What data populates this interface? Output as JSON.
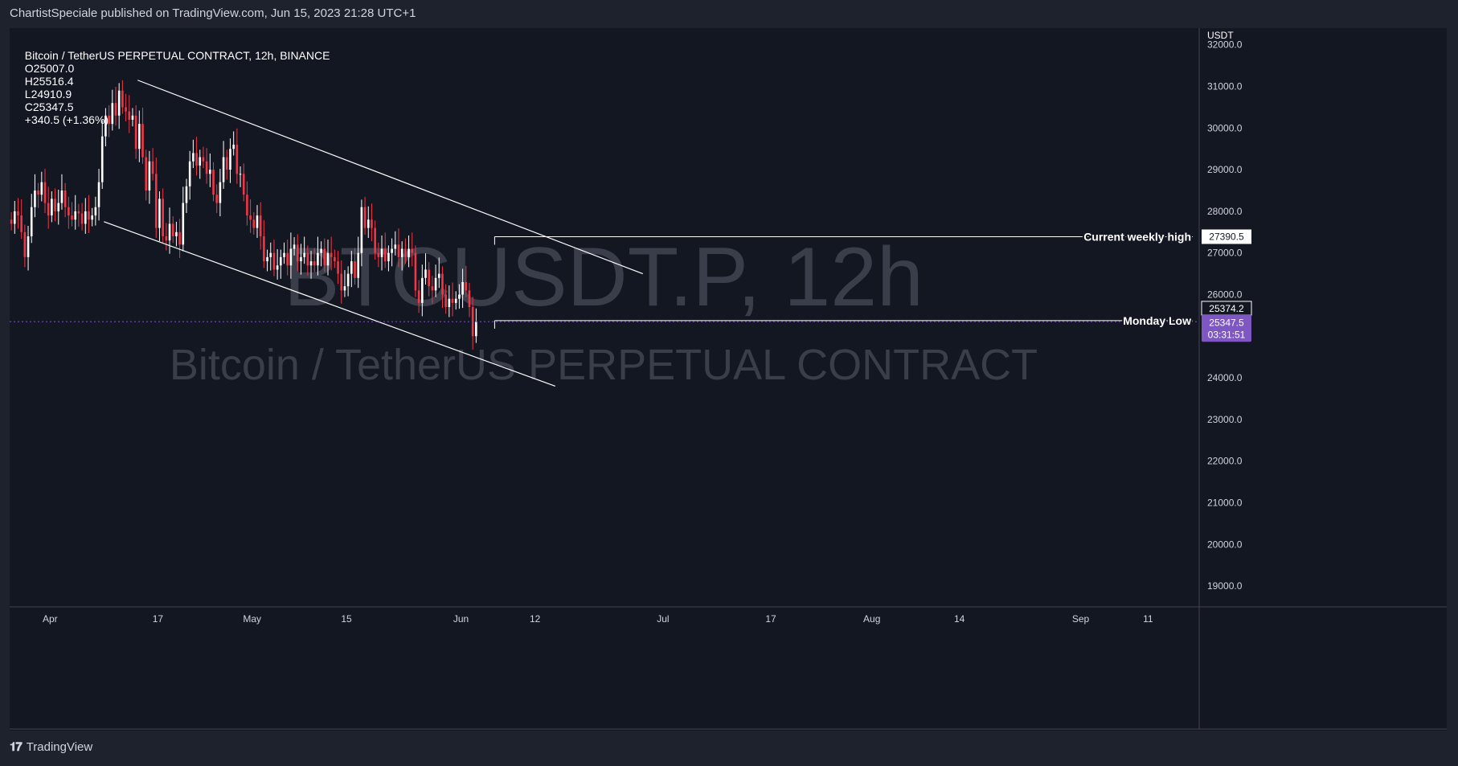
{
  "header": {
    "publisher_line": "ChartistSpeciale published on TradingView.com, Jun 15, 2023 21:28 UTC+1"
  },
  "legend": {
    "symbol": "Bitcoin / TetherUS PERPETUAL CONTRACT, 12h, BINANCE",
    "open": "O25007.0",
    "high": "H25516.4",
    "low": "L24910.9",
    "close": "C25347.5",
    "change": "+340.5 (+1.36%)"
  },
  "watermark": {
    "ticker": "BTCUSDT.P, 12h",
    "description": "Bitcoin / TetherUS PERPETUAL CONTRACT"
  },
  "footer": {
    "brand": "TradingView",
    "logo_icon": "tradingview-logo-icon"
  },
  "colors": {
    "background": "#131722",
    "frame": "#1e222d",
    "up_candle": "#ffffff",
    "down_candle": "#f23645",
    "drawing": "#ffffff",
    "last_price_badge": "#7e57c2",
    "dotted_price_line": "#7e57c2",
    "axis_text": "#d1d4dc",
    "watermark": "#3a3e4a"
  },
  "chart_data": {
    "type": "candlestick",
    "title": "Bitcoin / TetherUS PERPETUAL CONTRACT, 12h, BINANCE",
    "interval": "12h",
    "currency": "USDT",
    "ylim": [
      18500,
      32400
    ],
    "y_ticks": [
      19000,
      20000,
      21000,
      22000,
      23000,
      24000,
      25000,
      26000,
      27000,
      28000,
      29000,
      30000,
      31000,
      32000
    ],
    "y_tick_labels": [
      "19000.0",
      "20000.0",
      "21000.0",
      "22000.0",
      "23000.0",
      "24000.0",
      "25000.0",
      "26000.0",
      "27000.0",
      "28000.0",
      "29000.0",
      "30000.0",
      "31000.0",
      "32000.0"
    ],
    "x_range": [
      "2023-03-26",
      "2023-09-18"
    ],
    "x_ticks": [
      {
        "date": "2023-04-01",
        "label": "Apr"
      },
      {
        "date": "2023-04-17",
        "label": "17"
      },
      {
        "date": "2023-05-01",
        "label": "May"
      },
      {
        "date": "2023-05-15",
        "label": "15"
      },
      {
        "date": "2023-06-01",
        "label": "Jun"
      },
      {
        "date": "2023-06-12",
        "label": "12"
      },
      {
        "date": "2023-07-01",
        "label": "Jul"
      },
      {
        "date": "2023-07-17",
        "label": "17"
      },
      {
        "date": "2023-08-01",
        "label": "Aug"
      },
      {
        "date": "2023-08-14",
        "label": "14"
      },
      {
        "date": "2023-09-01",
        "label": "Sep"
      },
      {
        "date": "2023-09-11",
        "label": "11"
      }
    ],
    "candles_start": "2023-03-26",
    "candles_interval_hours": 12,
    "candles_close": [
      27700,
      28000,
      27900,
      27500,
      26900,
      27400,
      28100,
      28500,
      28400,
      28700,
      28200,
      27900,
      28300,
      28000,
      28200,
      28500,
      28100,
      27900,
      27800,
      28000,
      27950,
      27700,
      28000,
      27800,
      27900,
      28100,
      28700,
      29800,
      30300,
      30100,
      30600,
      30300,
      30900,
      30500,
      30400,
      30200,
      30300,
      29500,
      30100,
      29300,
      28500,
      29200,
      28900,
      27600,
      28300,
      27400,
      27300,
      27700,
      27400,
      27500,
      27200,
      28200,
      28600,
      29200,
      29400,
      29100,
      29300,
      29200,
      28900,
      29000,
      28400,
      28200,
      28700,
      29300,
      29000,
      29500,
      29600,
      28900,
      28900,
      28400,
      27900,
      27800,
      27600,
      27900,
      27400,
      26800,
      26900,
      27000,
      26600,
      26700,
      26900,
      27000,
      26700,
      27100,
      27200,
      26800,
      26900,
      27000,
      26700,
      26800,
      26700,
      27000,
      27100,
      26700,
      27000,
      26900,
      26800,
      26500,
      26100,
      26200,
      26500,
      26800,
      26400,
      27000,
      28100,
      27600,
      27800,
      27600,
      27000,
      26900,
      27100,
      26800,
      27000,
      27100,
      27200,
      26900,
      27100,
      26900,
      27100,
      27000,
      26100,
      25800,
      26400,
      26600,
      26200,
      26100,
      26400,
      26500,
      26000,
      25700,
      25900,
      25800,
      25900,
      26000,
      26300,
      26100,
      25700,
      25000,
      25347.5
    ],
    "last_price": 25347.5,
    "last_price_label": "25347.5",
    "countdown_label": "03:31:51",
    "axis_price_label": "25374.2",
    "annotations": [
      {
        "label": "Current weekly high",
        "price": 27390.5,
        "price_label": "27390.5",
        "start": "2023-06-06T00:00"
      },
      {
        "label": "Monday Low",
        "price": 25374.2,
        "start": "2023-06-06T00:00"
      }
    ],
    "channel": {
      "upper": [
        {
          "date": "2023-04-14",
          "price": 31150
        },
        {
          "date": "2023-06-28",
          "price": 26500
        }
      ],
      "lower": [
        {
          "date": "2023-04-09",
          "price": 27750
        },
        {
          "date": "2023-06-15",
          "price": 23800
        }
      ]
    }
  }
}
